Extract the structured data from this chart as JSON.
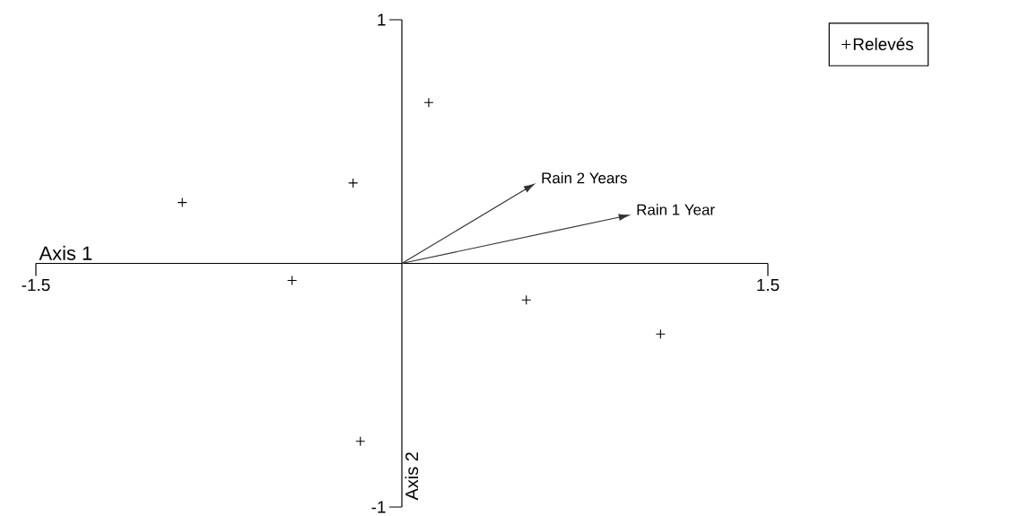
{
  "chart_data": {
    "type": "scatter",
    "xlabel": "Axis 1",
    "ylabel": "Axis 2",
    "x": [
      -0.9,
      -0.45,
      -0.2,
      -0.17,
      0.11,
      0.51,
      1.06
    ],
    "series": [
      {
        "name": "Relevés",
        "color": "#000000",
        "values": [
          0.25,
          -0.07,
          0.33,
          -0.73,
          0.66,
          -0.15,
          -0.29
        ]
      }
    ],
    "annotations": [
      "Rain 2 Years",
      "Rain 1 Year"
    ],
    "marker": "cross",
    "legend": "top right",
    "xlim": [
      -1.5,
      1.5
    ],
    "ylim": [
      -1,
      1
    ],
    "xticks": [
      -1.5,
      1.5
    ],
    "yticks": [
      -1,
      1
    ]
  }
}
